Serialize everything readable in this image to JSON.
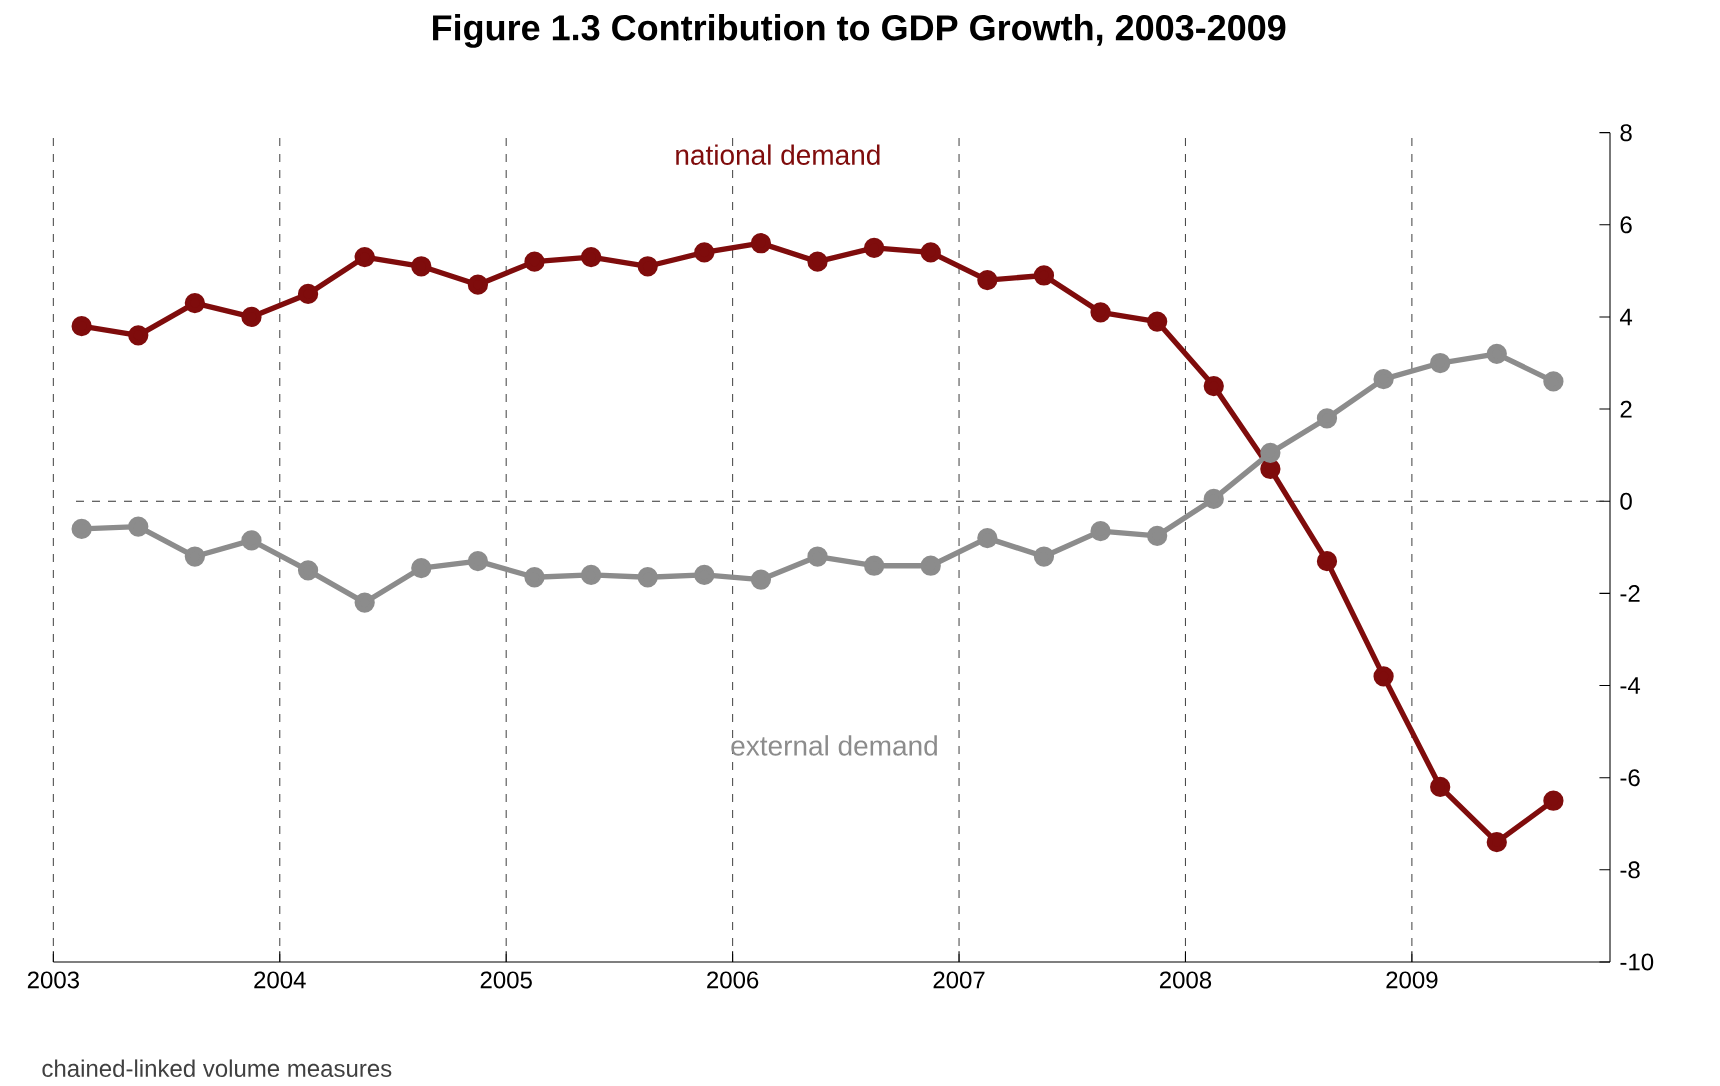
{
  "chart_data": {
    "type": "line",
    "title": "Figure 1.3 Contribution to GDP Growth, 2003-2009",
    "annotations": [
      "chained-linked volume measures"
    ],
    "x": [
      2003.125,
      2003.375,
      2003.625,
      2003.875,
      2004.125,
      2004.375,
      2004.625,
      2004.875,
      2005.125,
      2005.375,
      2005.625,
      2005.875,
      2006.125,
      2006.375,
      2006.625,
      2006.875,
      2007.125,
      2007.375,
      2007.625,
      2007.875,
      2008.125,
      2008.375,
      2008.625,
      2008.875,
      2009.125,
      2009.375,
      2009.625
    ],
    "series": [
      {
        "name": "national demand",
        "color": "#7f0c0c",
        "values": [
          3.8,
          3.6,
          4.3,
          4.0,
          4.5,
          5.3,
          5.1,
          4.7,
          5.2,
          5.3,
          5.1,
          5.4,
          5.6,
          5.2,
          5.5,
          5.4,
          4.8,
          4.9,
          4.1,
          3.9,
          2.5,
          0.7,
          -1.3,
          -3.8,
          -6.2,
          -7.4,
          -6.5
        ]
      },
      {
        "name": "external demand",
        "color": "#8c8c8c",
        "values": [
          -0.6,
          -0.55,
          -1.2,
          -0.85,
          -1.5,
          -2.2,
          -1.45,
          -1.3,
          -1.65,
          -1.6,
          -1.65,
          -1.6,
          -1.7,
          -1.2,
          -1.4,
          -1.4,
          -0.8,
          -1.2,
          -0.65,
          -0.75,
          0.05,
          1.05,
          1.8,
          2.65,
          3.0,
          3.2,
          2.6
        ]
      }
    ],
    "xlim": [
      2003,
      2009.875
    ],
    "xticks": [
      2003,
      2004,
      2005,
      2006,
      2007,
      2008,
      2009
    ],
    "ylim": [
      -10,
      8
    ],
    "yticks": [
      -10,
      -8,
      -6,
      -4,
      -2,
      0,
      2,
      4,
      6,
      8
    ],
    "ref_lines": [
      {
        "axis": "y",
        "value": 0,
        "line_style": "dashed",
        "color": "#333333"
      }
    ],
    "grid": "x",
    "marker": "circle",
    "line_style": "solid"
  }
}
